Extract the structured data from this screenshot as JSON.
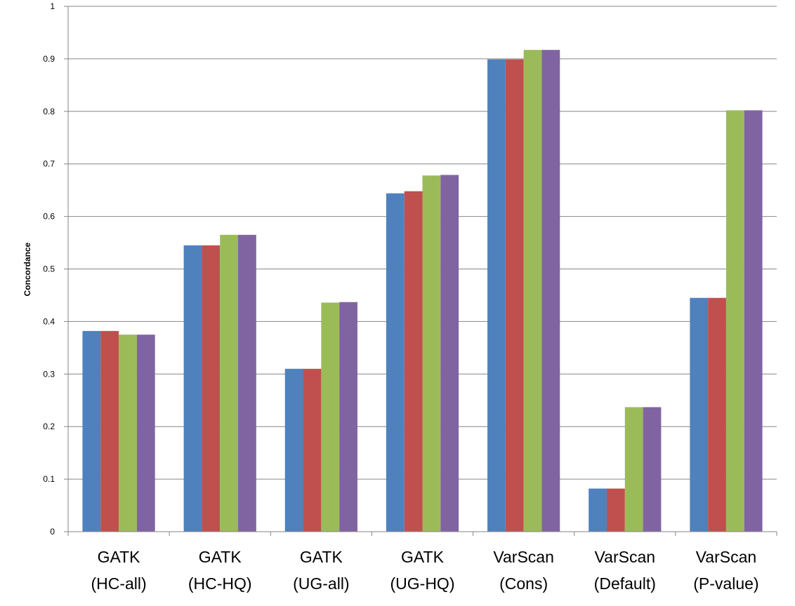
{
  "chart_data": {
    "type": "bar",
    "ylabel": "Concordance",
    "xlabel": "",
    "ylim": [
      0,
      1
    ],
    "yticks": [
      0,
      0.1,
      0.2,
      0.3,
      0.4,
      0.5,
      0.6,
      0.7,
      0.8,
      0.9,
      1
    ],
    "ytick_labels": [
      "0",
      "0.1",
      "0.2",
      "0.3",
      "0.4",
      "0.5",
      "0.6",
      "0.7",
      "0.8",
      "0.9",
      "1"
    ],
    "grid": true,
    "legend": "none",
    "categories": [
      [
        "GATK",
        "(HC-all)"
      ],
      [
        "GATK",
        "(HC-HQ)"
      ],
      [
        "GATK",
        "(UG-all)"
      ],
      [
        "GATK",
        "(UG-HQ)"
      ],
      [
        "VarScan",
        "(Cons)"
      ],
      [
        "VarScan",
        "(Default)"
      ],
      [
        "VarScan",
        "(P-value)"
      ]
    ],
    "series": [
      {
        "color": "#4F81BD",
        "values": [
          0.382,
          0.545,
          0.31,
          0.644,
          0.899,
          0.082,
          0.445
        ]
      },
      {
        "color": "#C0504D",
        "values": [
          0.382,
          0.545,
          0.31,
          0.648,
          0.899,
          0.082,
          0.445
        ]
      },
      {
        "color": "#9BBB59",
        "values": [
          0.375,
          0.565,
          0.436,
          0.678,
          0.917,
          0.237,
          0.802
        ]
      },
      {
        "color": "#8064A2",
        "values": [
          0.375,
          0.565,
          0.437,
          0.679,
          0.917,
          0.237,
          0.802
        ]
      }
    ]
  }
}
